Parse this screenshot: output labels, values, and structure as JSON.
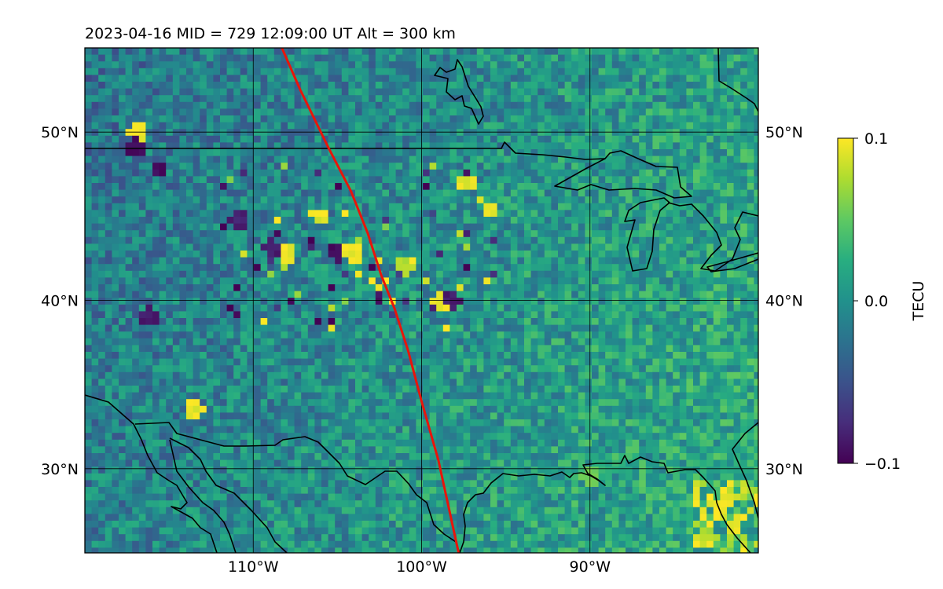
{
  "title": "2023-04-16  MID = 729    12:09:00  UT  Alt = 300 km",
  "map": {
    "lat_range": [
      25,
      55
    ],
    "lon_range": [
      -120,
      -80
    ],
    "lat_ticks": [
      {
        "value": 50,
        "label": "50°N"
      },
      {
        "value": 40,
        "label": "40°N"
      },
      {
        "value": 30,
        "label": "30°N"
      }
    ],
    "lon_ticks": [
      {
        "value": -110,
        "label": "110°W"
      },
      {
        "value": -100,
        "label": "100°W"
      },
      {
        "value": -90,
        "label": "90°W"
      }
    ],
    "grid": true,
    "track_color": "#e8150b",
    "track": [
      [
        -108.3,
        55
      ],
      [
        -107.2,
        52.5
      ],
      [
        -105.5,
        49
      ],
      [
        -104.2,
        46.5
      ],
      [
        -103.2,
        44
      ],
      [
        -102.4,
        41.5
      ],
      [
        -101.6,
        39.5
      ],
      [
        -100.8,
        37
      ],
      [
        -100.0,
        34
      ],
      [
        -99.0,
        30.5
      ],
      [
        -97.8,
        25
      ]
    ],
    "coast_color": "#000000"
  },
  "colorbar": {
    "label": "TECU",
    "min": -0.1,
    "max": 0.1,
    "ticks": [
      {
        "value": 0.1,
        "label": "0.1"
      },
      {
        "value": 0.0,
        "label": "0.0"
      },
      {
        "value": -0.1,
        "label": "−0.1"
      }
    ],
    "colormap": "viridis"
  },
  "chart_data": {
    "type": "heatmap",
    "title": "2023-04-16  MID = 729    12:09:00  UT  Alt = 300 km",
    "xlabel": "",
    "ylabel": "",
    "x_range_deg": [
      -120,
      -80
    ],
    "y_range_deg": [
      25,
      55
    ],
    "value_label": "TECU",
    "value_range": [
      -0.1,
      0.1
    ],
    "background_level": 0.0,
    "hotspots": [
      {
        "lon": -116.9,
        "lat": 50.0,
        "value": 0.1
      },
      {
        "lon": -117.0,
        "lat": 49.1,
        "value": -0.1
      },
      {
        "lon": -115.6,
        "lat": 47.7,
        "value": -0.1
      },
      {
        "lon": -108.0,
        "lat": 42.8,
        "value": 0.1
      },
      {
        "lon": -108.8,
        "lat": 43.1,
        "value": -0.09
      },
      {
        "lon": -105.0,
        "lat": 42.8,
        "value": -0.1
      },
      {
        "lon": -104.0,
        "lat": 42.8,
        "value": 0.1
      },
      {
        "lon": -106.0,
        "lat": 45.0,
        "value": 0.1
      },
      {
        "lon": -110.8,
        "lat": 44.8,
        "value": -0.09
      },
      {
        "lon": -116.2,
        "lat": 39.1,
        "value": -0.09
      },
      {
        "lon": -113.5,
        "lat": 33.5,
        "value": 0.1
      },
      {
        "lon": -101.0,
        "lat": 42.0,
        "value": 0.08
      },
      {
        "lon": -98.8,
        "lat": 39.9,
        "value": 0.1
      },
      {
        "lon": -98.2,
        "lat": 40.0,
        "value": -0.09
      },
      {
        "lon": -95.9,
        "lat": 45.3,
        "value": 0.1
      },
      {
        "lon": -97.2,
        "lat": 47.0,
        "value": 0.1
      },
      {
        "lon": -82.0,
        "lat": 28.0,
        "value": 0.1
      },
      {
        "lon": -81.5,
        "lat": 26.5,
        "value": 0.1
      },
      {
        "lon": -83.0,
        "lat": 26.0,
        "value": 0.08
      },
      {
        "lon": -90.0,
        "lat": 29.5,
        "value": 0.06
      }
    ]
  }
}
